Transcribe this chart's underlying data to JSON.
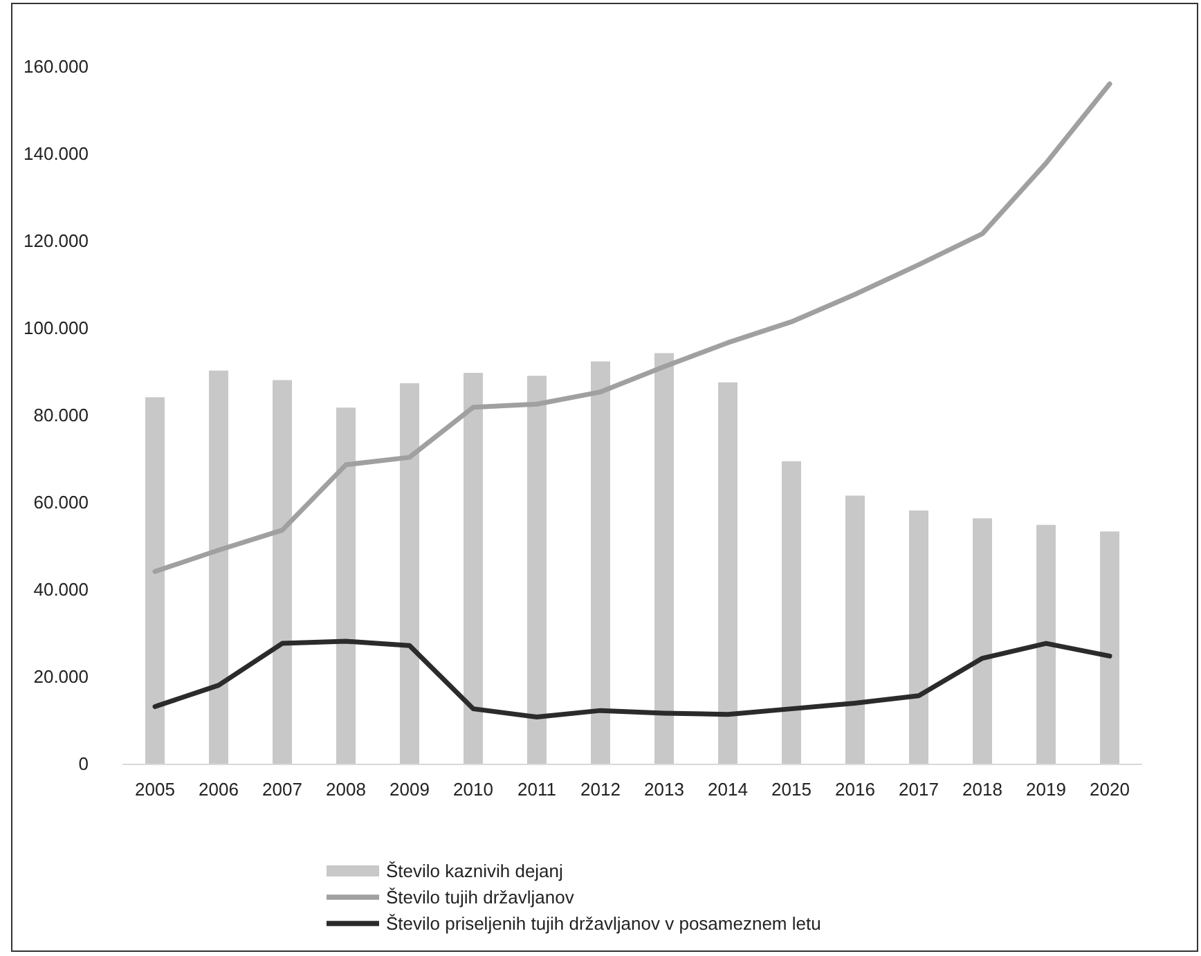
{
  "chart_data": {
    "type": "bar",
    "categories": [
      "2005",
      "2006",
      "2007",
      "2008",
      "2009",
      "2010",
      "2011",
      "2012",
      "2013",
      "2014",
      "2015",
      "2016",
      "2017",
      "2018",
      "2019",
      "2020"
    ],
    "series": [
      {
        "name": "Število kaznivih dejanj",
        "color": "#c8c8c8",
        "values": [
          84100,
          90200,
          88000,
          81700,
          87300,
          89700,
          89000,
          92300,
          94200,
          87500,
          69400,
          61500,
          58100,
          56300,
          54800,
          53300
        ]
      },
      {
        "name": "Število tujih državljanov",
        "type": "line",
        "color": "#a0a0a0",
        "values": [
          44100,
          49000,
          53600,
          68600,
          70300,
          81800,
          82500,
          85300,
          91100,
          96600,
          101400,
          107700,
          114500,
          121600,
          137800,
          156000
        ]
      },
      {
        "name": "Število priseljenih tujih državljanov v posameznem letu",
        "type": "line",
        "color": "#2b2b2b",
        "values": [
          13100,
          18000,
          27600,
          28100,
          27100,
          12600,
          10700,
          12200,
          11600,
          11300,
          12600,
          13900,
          15600,
          24200,
          27600,
          24700
        ]
      }
    ],
    "ylim": [
      0,
      160000
    ],
    "yticks": [
      {
        "value": 0,
        "label": "0"
      },
      {
        "value": 20000,
        "label": "20.000"
      },
      {
        "value": 40000,
        "label": "40.000"
      },
      {
        "value": 60000,
        "label": "60.000"
      },
      {
        "value": 80000,
        "label": "80.000"
      },
      {
        "value": 100000,
        "label": "100.000"
      },
      {
        "value": 120000,
        "label": "120.000"
      },
      {
        "value": 140000,
        "label": "140.000"
      },
      {
        "value": 160000,
        "label": "160.000"
      }
    ],
    "grid": false,
    "legend": "bottom",
    "marker": "none",
    "line_style": "solid"
  }
}
